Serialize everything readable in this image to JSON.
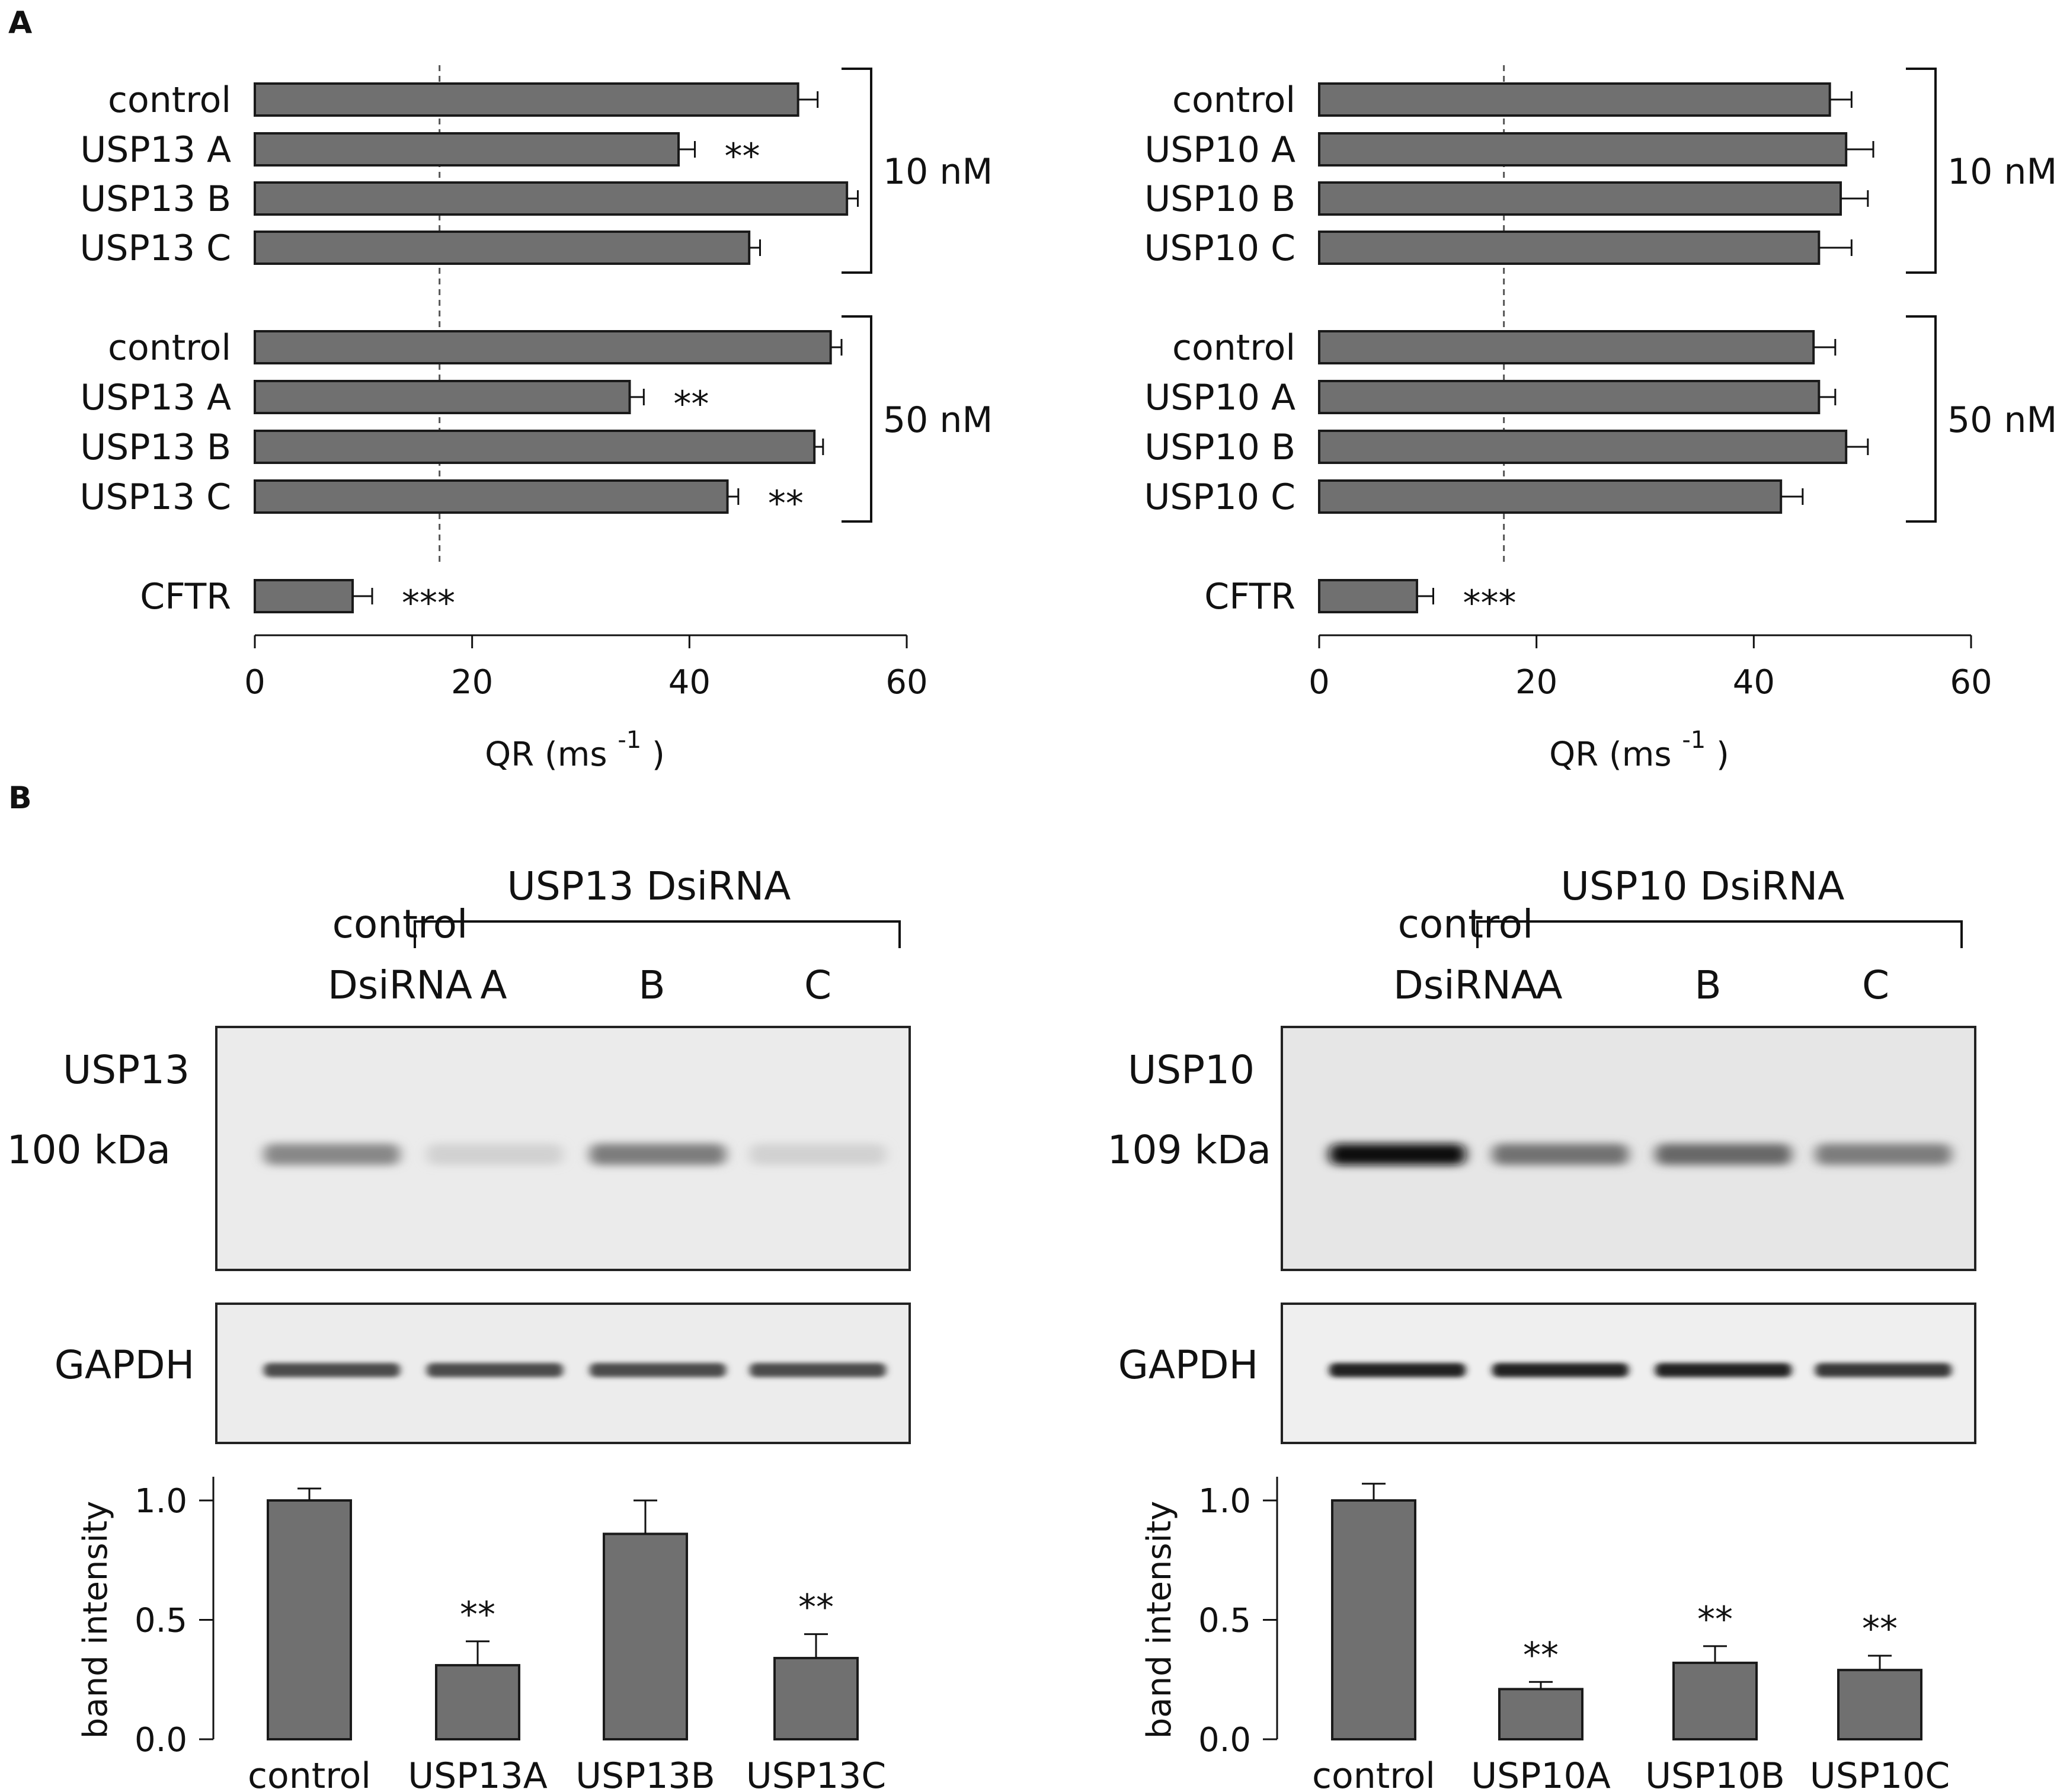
{
  "panel_labels": [
    "A",
    "B"
  ],
  "chart_data": [
    {
      "id": "qr_usp13",
      "type": "bar",
      "orientation": "horizontal",
      "xlabel": "QR (ms",
      "xlabel_sup": "-1",
      "xlabel_close": ")",
      "xlim": [
        0,
        60
      ],
      "xticks": [
        0,
        20,
        40,
        60
      ],
      "reference_line": 17,
      "groups": [
        {
          "label": "10 nM",
          "bars": [
            {
              "label": "control",
              "value": 50,
              "error": 1.8,
              "stars": ""
            },
            {
              "label": "USP13 A",
              "value": 39,
              "error": 1.5,
              "stars": "**"
            },
            {
              "label": "USP13 B",
              "value": 54.5,
              "error": 1.0,
              "stars": ""
            },
            {
              "label": "USP13 C",
              "value": 45.5,
              "error": 1.0,
              "stars": ""
            }
          ]
        },
        {
          "label": "50 nM",
          "bars": [
            {
              "label": "control",
              "value": 53,
              "error": 1.0,
              "stars": ""
            },
            {
              "label": "USP13 A",
              "value": 34.5,
              "error": 1.3,
              "stars": "**"
            },
            {
              "label": "USP13 B",
              "value": 51.5,
              "error": 0.8,
              "stars": ""
            },
            {
              "label": "USP13 C",
              "value": 43.5,
              "error": 1.0,
              "stars": "**"
            }
          ]
        },
        {
          "label": "",
          "bars": [
            {
              "label": "CFTR",
              "value": 9,
              "error": 1.8,
              "stars": "***"
            }
          ]
        }
      ]
    },
    {
      "id": "qr_usp10",
      "type": "bar",
      "orientation": "horizontal",
      "xlabel": "QR (ms",
      "xlabel_sup": "-1",
      "xlabel_close": ")",
      "xlim": [
        0,
        60
      ],
      "xticks": [
        0,
        20,
        40,
        60
      ],
      "reference_line": 17,
      "groups": [
        {
          "label": "10 nM",
          "bars": [
            {
              "label": "control",
              "value": 47,
              "error": 2.0,
              "stars": ""
            },
            {
              "label": "USP10 A",
              "value": 48.5,
              "error": 2.5,
              "stars": ""
            },
            {
              "label": "USP10 B",
              "value": 48,
              "error": 2.5,
              "stars": ""
            },
            {
              "label": "USP10 C",
              "value": 46,
              "error": 3.0,
              "stars": ""
            }
          ]
        },
        {
          "label": "50 nM",
          "bars": [
            {
              "label": "control",
              "value": 45.5,
              "error": 2.0,
              "stars": ""
            },
            {
              "label": "USP10 A",
              "value": 46,
              "error": 1.5,
              "stars": ""
            },
            {
              "label": "USP10 B",
              "value": 48.5,
              "error": 2.0,
              "stars": ""
            },
            {
              "label": "USP10 C",
              "value": 42.5,
              "error": 2.0,
              "stars": ""
            }
          ]
        },
        {
          "label": "",
          "bars": [
            {
              "label": "CFTR",
              "value": 9,
              "error": 1.5,
              "stars": "***"
            }
          ]
        }
      ]
    },
    {
      "id": "band_usp13",
      "type": "bar",
      "ylabel": "band intensity",
      "ylim": [
        0,
        1.0
      ],
      "yticks": [
        "0.0",
        "0.5",
        "1.0"
      ],
      "categories": [
        "control",
        "USP13A",
        "USP13B",
        "USP13C"
      ],
      "values": [
        1.0,
        0.31,
        0.86,
        0.34
      ],
      "errors": [
        0.05,
        0.1,
        0.14,
        0.1
      ],
      "stars": [
        "",
        "**",
        "",
        "**"
      ]
    },
    {
      "id": "band_usp10",
      "type": "bar",
      "ylabel": "band intensity",
      "ylim": [
        0,
        1.0
      ],
      "yticks": [
        "0.0",
        "0.5",
        "1.0"
      ],
      "categories": [
        "control",
        "USP10A",
        "USP10B",
        "USP10C"
      ],
      "values": [
        1.0,
        0.21,
        0.32,
        0.29
      ],
      "errors": [
        0.07,
        0.03,
        0.07,
        0.06
      ],
      "stars": [
        "",
        "**",
        "**",
        "**"
      ]
    }
  ],
  "blots": [
    {
      "id": "usp13",
      "header": "USP13 DsiRNA",
      "control_label_line1": "control",
      "control_label_line2": "DsiRNA",
      "lanes": [
        "A",
        "B",
        "C"
      ],
      "protein_label": "USP13",
      "mw_label": "100 kDa",
      "loading_label": "GAPDH",
      "band_strength": [
        0.45,
        0.12,
        0.5,
        0.12
      ],
      "gapdh_strength": [
        0.8,
        0.8,
        0.8,
        0.8
      ]
    },
    {
      "id": "usp10",
      "header": "USP10 DsiRNA",
      "control_label_line1": "control",
      "control_label_line2": "DsiRNA",
      "lanes": [
        "A",
        "B",
        "C"
      ],
      "protein_label": "USP10",
      "mw_label": "109 kDa",
      "loading_label": "GAPDH",
      "band_strength": [
        1.0,
        0.55,
        0.6,
        0.5
      ],
      "gapdh_strength": [
        1.0,
        1.0,
        1.0,
        0.9
      ]
    }
  ]
}
